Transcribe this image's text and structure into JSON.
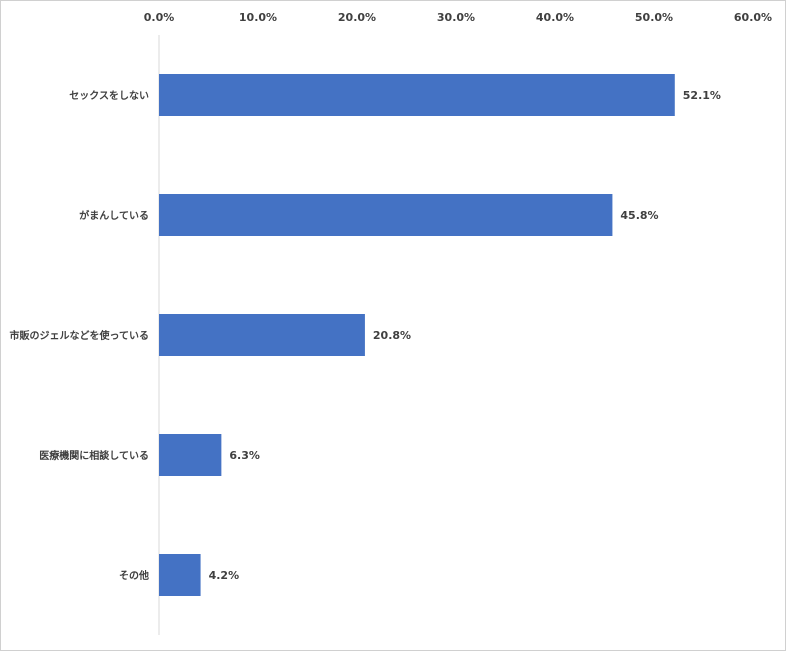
{
  "chart_data": {
    "type": "bar",
    "orientation": "horizontal",
    "title": "",
    "xlabel": "",
    "ylabel": "",
    "xlim": [
      0,
      60
    ],
    "x_ticks": [
      0,
      10,
      20,
      30,
      40,
      50,
      60
    ],
    "x_tick_labels": [
      "0.0%",
      "10.0%",
      "20.0%",
      "30.0%",
      "40.0%",
      "50.0%",
      "60.0%"
    ],
    "axis_position": "top",
    "grid": false,
    "legend": "none",
    "categories": [
      "セックスをしない",
      "がまんしている",
      "市販のジェルなどを使っている",
      "医療機関に相談している",
      "その他"
    ],
    "values": [
      52.1,
      45.8,
      20.8,
      6.3,
      4.2
    ],
    "data_labels": [
      "52.1%",
      "45.8%",
      "20.8%",
      "6.3%",
      "4.2%"
    ],
    "bar_color": "#4472C4"
  }
}
